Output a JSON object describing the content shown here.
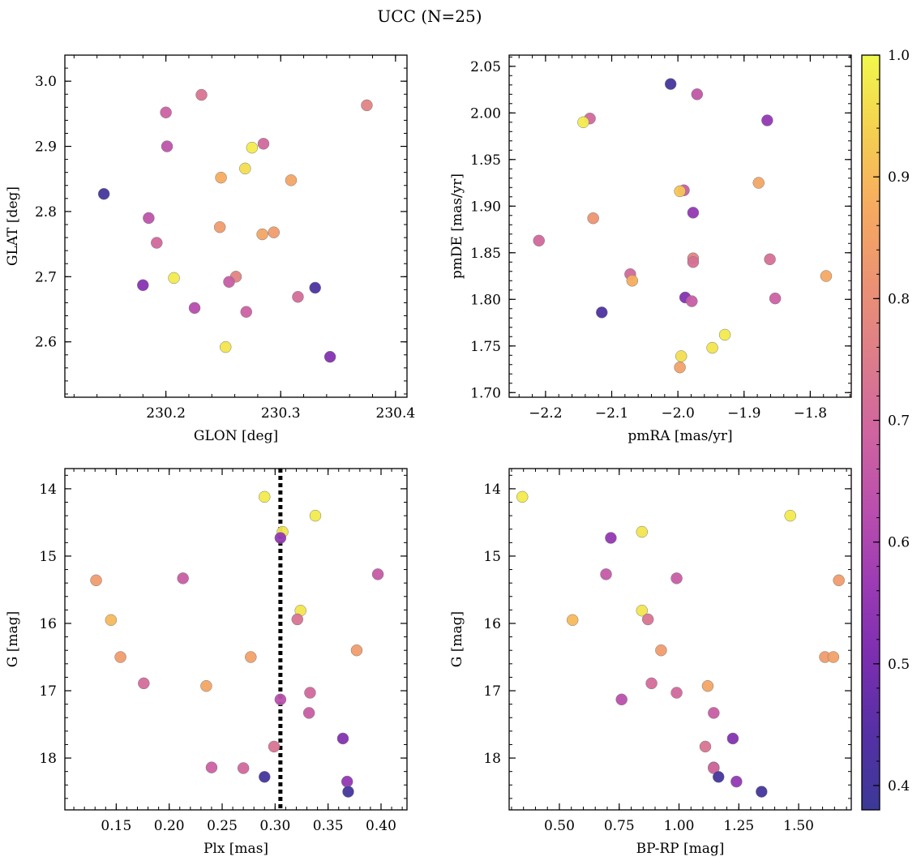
{
  "suptitle": "UCC (N=25)",
  "colorbar": {
    "range": [
      0.38,
      1.0
    ],
    "ticks": [
      0.4,
      0.5,
      0.6,
      0.7,
      0.8,
      0.9,
      1.0
    ],
    "tick_labels": [
      "0.4",
      "0.5",
      "0.6",
      "0.7",
      "0.8",
      "0.9",
      "1.0"
    ],
    "colormap": "plasma",
    "stops": [
      [
        0.0,
        "#3b3997"
      ],
      [
        0.1,
        "#5530a5"
      ],
      [
        0.2,
        "#7a2eb0"
      ],
      [
        0.3,
        "#9c3bb4"
      ],
      [
        0.4,
        "#ba4fad"
      ],
      [
        0.5,
        "#cf64a0"
      ],
      [
        0.6,
        "#dd7d8a"
      ],
      [
        0.7,
        "#ec9273"
      ],
      [
        0.8,
        "#f6ab60"
      ],
      [
        0.9,
        "#f4d050"
      ],
      [
        1.0,
        "#f1f84c"
      ]
    ]
  },
  "chart_data": [
    {
      "type": "scatter",
      "xlabel": "GLON [deg]",
      "ylabel": "GLAT [deg]",
      "xlim": [
        230.112,
        230.41
      ],
      "ylim": [
        2.515,
        3.04
      ],
      "xticks": [
        230.2,
        230.3,
        230.4
      ],
      "xtick_labels": [
        "230.2",
        "230.3",
        "230.4"
      ],
      "xminor": 0.02,
      "yticks": [
        2.6,
        2.7,
        2.8,
        2.9,
        3.0
      ],
      "ytick_labels": [
        "2.6",
        "2.7",
        "2.8",
        "2.9",
        "3.0"
      ],
      "yminor": 0.02,
      "yinvert": false,
      "points": [
        {
          "x": 230.146,
          "y": 2.827,
          "c": 0.4
        },
        {
          "x": 230.2,
          "y": 2.952,
          "c": 0.68
        },
        {
          "x": 230.231,
          "y": 2.979,
          "c": 0.73
        },
        {
          "x": 230.375,
          "y": 2.963,
          "c": 0.77
        },
        {
          "x": 230.201,
          "y": 2.9,
          "c": 0.64
        },
        {
          "x": 230.285,
          "y": 2.904,
          "c": 0.7
        },
        {
          "x": 230.275,
          "y": 2.898,
          "c": 0.98
        },
        {
          "x": 230.269,
          "y": 2.866,
          "c": 0.96
        },
        {
          "x": 230.248,
          "y": 2.852,
          "c": 0.88
        },
        {
          "x": 230.309,
          "y": 2.848,
          "c": 0.86
        },
        {
          "x": 230.185,
          "y": 2.79,
          "c": 0.64
        },
        {
          "x": 230.247,
          "y": 2.776,
          "c": 0.84
        },
        {
          "x": 230.284,
          "y": 2.765,
          "c": 0.86
        },
        {
          "x": 230.294,
          "y": 2.768,
          "c": 0.84
        },
        {
          "x": 230.192,
          "y": 2.752,
          "c": 0.7
        },
        {
          "x": 230.207,
          "y": 2.698,
          "c": 0.98
        },
        {
          "x": 230.261,
          "y": 2.7,
          "c": 0.77
        },
        {
          "x": 230.18,
          "y": 2.687,
          "c": 0.53
        },
        {
          "x": 230.255,
          "y": 2.692,
          "c": 0.67
        },
        {
          "x": 230.33,
          "y": 2.683,
          "c": 0.42
        },
        {
          "x": 230.315,
          "y": 2.669,
          "c": 0.71
        },
        {
          "x": 230.225,
          "y": 2.652,
          "c": 0.62
        },
        {
          "x": 230.27,
          "y": 2.646,
          "c": 0.68
        },
        {
          "x": 230.252,
          "y": 2.592,
          "c": 0.97
        },
        {
          "x": 230.343,
          "y": 2.577,
          "c": 0.52
        }
      ]
    },
    {
      "type": "scatter",
      "xlabel": "pmRA [mas/yr]",
      "ylabel": "pmDE [mas/yr]",
      "xlim": [
        -2.255,
        -1.738
      ],
      "ylim": [
        1.695,
        2.062
      ],
      "xticks": [
        -2.2,
        -2.1,
        -2.0,
        -1.9,
        -1.8
      ],
      "xtick_labels": [
        "−2.2",
        "−2.1",
        "−2.0",
        "−1.9",
        "−1.8"
      ],
      "xminor": 0.02,
      "yticks": [
        1.7,
        1.75,
        1.8,
        1.85,
        1.9,
        1.95,
        2.0,
        2.05
      ],
      "ytick_labels": [
        "1.70",
        "1.75",
        "1.80",
        "1.85",
        "1.90",
        "1.95",
        "2.00",
        "2.05"
      ],
      "yminor": 0.01,
      "yinvert": false,
      "points": [
        {
          "x": -2.011,
          "y": 2.031,
          "c": 0.4
        },
        {
          "x": -1.971,
          "y": 2.02,
          "c": 0.65
        },
        {
          "x": -2.133,
          "y": 1.994,
          "c": 0.7
        },
        {
          "x": -2.143,
          "y": 1.99,
          "c": 0.98
        },
        {
          "x": -1.865,
          "y": 1.992,
          "c": 0.55
        },
        {
          "x": -1.878,
          "y": 1.925,
          "c": 0.86
        },
        {
          "x": -1.991,
          "y": 1.917,
          "c": 0.67
        },
        {
          "x": -1.997,
          "y": 1.916,
          "c": 0.92
        },
        {
          "x": -1.977,
          "y": 1.893,
          "c": 0.55
        },
        {
          "x": -2.128,
          "y": 1.887,
          "c": 0.82
        },
        {
          "x": -2.21,
          "y": 1.863,
          "c": 0.7
        },
        {
          "x": -1.977,
          "y": 1.844,
          "c": 0.77
        },
        {
          "x": -1.977,
          "y": 1.84,
          "c": 0.72
        },
        {
          "x": -1.861,
          "y": 1.843,
          "c": 0.72
        },
        {
          "x": -2.072,
          "y": 1.827,
          "c": 0.7
        },
        {
          "x": -2.069,
          "y": 1.82,
          "c": 0.88
        },
        {
          "x": -1.776,
          "y": 1.825,
          "c": 0.87
        },
        {
          "x": -1.989,
          "y": 1.802,
          "c": 0.52
        },
        {
          "x": -1.979,
          "y": 1.798,
          "c": 0.67
        },
        {
          "x": -1.853,
          "y": 1.801,
          "c": 0.68
        },
        {
          "x": -2.115,
          "y": 1.786,
          "c": 0.42
        },
        {
          "x": -1.929,
          "y": 1.762,
          "c": 0.98
        },
        {
          "x": -1.948,
          "y": 1.748,
          "c": 0.97
        },
        {
          "x": -1.995,
          "y": 1.739,
          "c": 0.96
        },
        {
          "x": -1.997,
          "y": 1.727,
          "c": 0.85
        }
      ]
    },
    {
      "type": "scatter",
      "xlabel": "Plx [mas]",
      "ylabel": "G [mag]",
      "xlim": [
        0.1015,
        0.4245
      ],
      "ylim": [
        13.7,
        18.77
      ],
      "xticks": [
        0.15,
        0.2,
        0.25,
        0.3,
        0.35,
        0.4
      ],
      "xtick_labels": [
        "0.15",
        "0.20",
        "0.25",
        "0.30",
        "0.35",
        "0.40"
      ],
      "xminor": 0.01,
      "yticks": [
        14,
        15,
        16,
        17,
        18
      ],
      "ytick_labels": [
        "14",
        "15",
        "16",
        "17",
        "18"
      ],
      "yminor": 0.2,
      "yinvert": true,
      "vline": 0.305,
      "points": [
        {
          "x": 0.29,
          "y": 14.12,
          "c": 0.98
        },
        {
          "x": 0.338,
          "y": 14.4,
          "c": 0.98
        },
        {
          "x": 0.307,
          "y": 14.64,
          "c": 0.97
        },
        {
          "x": 0.305,
          "y": 14.73,
          "c": 0.55
        },
        {
          "x": 0.131,
          "y": 15.36,
          "c": 0.84
        },
        {
          "x": 0.213,
          "y": 15.33,
          "c": 0.67
        },
        {
          "x": 0.397,
          "y": 15.27,
          "c": 0.66
        },
        {
          "x": 0.145,
          "y": 15.95,
          "c": 0.9
        },
        {
          "x": 0.324,
          "y": 15.81,
          "c": 0.97
        },
        {
          "x": 0.321,
          "y": 15.94,
          "c": 0.73
        },
        {
          "x": 0.377,
          "y": 16.4,
          "c": 0.84
        },
        {
          "x": 0.154,
          "y": 16.5,
          "c": 0.84
        },
        {
          "x": 0.277,
          "y": 16.5,
          "c": 0.85
        },
        {
          "x": 0.176,
          "y": 16.89,
          "c": 0.71
        },
        {
          "x": 0.235,
          "y": 16.93,
          "c": 0.86
        },
        {
          "x": 0.333,
          "y": 17.03,
          "c": 0.7
        },
        {
          "x": 0.305,
          "y": 17.13,
          "c": 0.63
        },
        {
          "x": 0.332,
          "y": 17.33,
          "c": 0.67
        },
        {
          "x": 0.364,
          "y": 17.71,
          "c": 0.52
        },
        {
          "x": 0.299,
          "y": 17.83,
          "c": 0.73
        },
        {
          "x": 0.24,
          "y": 18.14,
          "c": 0.68
        },
        {
          "x": 0.27,
          "y": 18.15,
          "c": 0.7
        },
        {
          "x": 0.29,
          "y": 18.28,
          "c": 0.4
        },
        {
          "x": 0.368,
          "y": 18.35,
          "c": 0.55
        },
        {
          "x": 0.369,
          "y": 18.5,
          "c": 0.4
        }
      ]
    },
    {
      "type": "scatter",
      "xlabel": "BP-RP [mag]",
      "ylabel": "G [mag]",
      "xlim": [
        0.29,
        1.72
      ],
      "ylim": [
        13.7,
        18.77
      ],
      "xticks": [
        0.5,
        0.75,
        1.0,
        1.25,
        1.5
      ],
      "xtick_labels": [
        "0.50",
        "0.75",
        "1.00",
        "1.25",
        "1.50"
      ],
      "xminor": 0.05,
      "yticks": [
        14,
        15,
        16,
        17,
        18
      ],
      "ytick_labels": [
        "14",
        "15",
        "16",
        "17",
        "18"
      ],
      "yminor": 0.2,
      "yinvert": true,
      "points": [
        {
          "x": 0.345,
          "y": 14.12,
          "c": 0.98
        },
        {
          "x": 1.465,
          "y": 14.4,
          "c": 0.98
        },
        {
          "x": 0.845,
          "y": 14.64,
          "c": 0.97
        },
        {
          "x": 0.715,
          "y": 14.73,
          "c": 0.55
        },
        {
          "x": 0.695,
          "y": 15.27,
          "c": 0.66
        },
        {
          "x": 0.99,
          "y": 15.33,
          "c": 0.67
        },
        {
          "x": 1.668,
          "y": 15.36,
          "c": 0.84
        },
        {
          "x": 0.555,
          "y": 15.95,
          "c": 0.9
        },
        {
          "x": 0.845,
          "y": 15.81,
          "c": 0.97
        },
        {
          "x": 0.87,
          "y": 15.94,
          "c": 0.73
        },
        {
          "x": 0.925,
          "y": 16.4,
          "c": 0.84
        },
        {
          "x": 1.61,
          "y": 16.5,
          "c": 0.84
        },
        {
          "x": 1.645,
          "y": 16.5,
          "c": 0.85
        },
        {
          "x": 0.885,
          "y": 16.89,
          "c": 0.71
        },
        {
          "x": 1.12,
          "y": 16.93,
          "c": 0.86
        },
        {
          "x": 0.99,
          "y": 17.03,
          "c": 0.7
        },
        {
          "x": 0.76,
          "y": 17.13,
          "c": 0.63
        },
        {
          "x": 1.145,
          "y": 17.33,
          "c": 0.67
        },
        {
          "x": 1.225,
          "y": 17.71,
          "c": 0.52
        },
        {
          "x": 1.11,
          "y": 17.83,
          "c": 0.73
        },
        {
          "x": 1.145,
          "y": 18.14,
          "c": 0.68
        },
        {
          "x": 1.145,
          "y": 18.15,
          "c": 0.7
        },
        {
          "x": 1.165,
          "y": 18.28,
          "c": 0.4
        },
        {
          "x": 1.24,
          "y": 18.35,
          "c": 0.55
        },
        {
          "x": 1.345,
          "y": 18.5,
          "c": 0.4
        }
      ]
    }
  ]
}
